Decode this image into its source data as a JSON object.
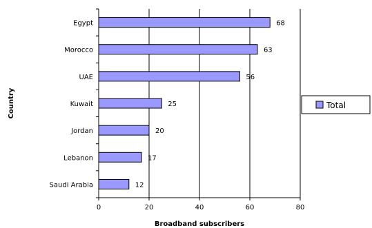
{
  "chart_data": {
    "type": "bar",
    "orientation": "horizontal",
    "categories": [
      "Egypt",
      "Morocco",
      "UAE",
      "Kuwait",
      "Jordan",
      "Lebanon",
      "Saudi Arabia"
    ],
    "series": [
      {
        "name": "Total",
        "values": [
          68,
          63,
          56,
          25,
          20,
          17,
          12
        ],
        "color": "#9999ff"
      }
    ],
    "data_labels": [
      "68",
      "63",
      "56",
      "25",
      "20",
      "17",
      "12"
    ],
    "xlabel": "Broadband subscribers",
    "ylabel": "Country",
    "xlim": [
      0,
      80
    ],
    "x_ticks": [
      "0",
      "20",
      "40",
      "60",
      "80"
    ],
    "grid": true,
    "legend": "right"
  }
}
